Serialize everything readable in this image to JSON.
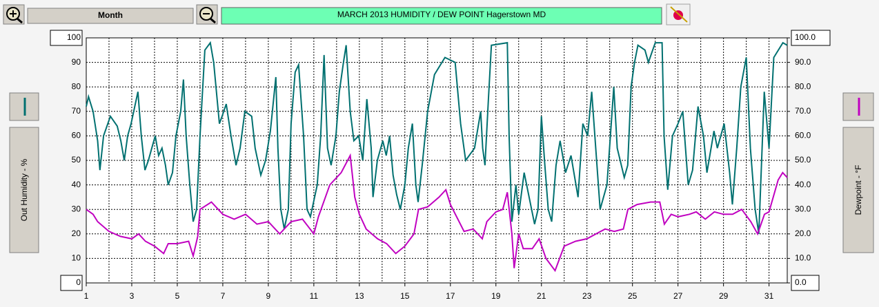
{
  "ui": {
    "period": "Month"
  },
  "chart_data": {
    "type": "line",
    "title": "MARCH  2013  HUMIDITY / DEW POINT  Hagerstown MD",
    "xlim": [
      1,
      31.8
    ],
    "xticks": [
      1,
      3,
      5,
      7,
      9,
      11,
      13,
      15,
      17,
      19,
      21,
      23,
      25,
      27,
      29,
      31
    ],
    "ylim": [
      0,
      100
    ],
    "yticks": [
      0,
      10,
      20,
      30,
      40,
      50,
      60,
      70,
      80,
      90,
      100
    ],
    "y2lim": [
      0,
      100
    ],
    "y2ticks": [
      {
        "value": 0,
        "label": "0.0"
      },
      {
        "value": 10,
        "label": "10.0"
      },
      {
        "value": 20,
        "label": "20.0"
      },
      {
        "value": 30,
        "label": "30.0"
      },
      {
        "value": 40,
        "label": "40.0"
      },
      {
        "value": 50,
        "label": "50.0"
      },
      {
        "value": 60,
        "label": "60.0"
      },
      {
        "value": 70,
        "label": "70.0"
      },
      {
        "value": 80,
        "label": "80.0"
      },
      {
        "value": 90,
        "label": "90.0"
      },
      {
        "value": 100,
        "label": "100.0"
      }
    ],
    "grid": true,
    "series": [
      {
        "name": "Out Humidity - %",
        "color": "#007070",
        "x": [
          1.0,
          1.1,
          1.3,
          1.5,
          1.6,
          1.76,
          2.06,
          2.36,
          2.52,
          2.67,
          2.82,
          2.97,
          3.27,
          3.42,
          3.58,
          3.73,
          3.88,
          4.03,
          4.18,
          4.33,
          4.48,
          4.6,
          4.79,
          4.94,
          5.15,
          5.27,
          5.39,
          5.55,
          5.7,
          5.85,
          6.0,
          6.21,
          6.45,
          6.6,
          6.85,
          6.97,
          7.15,
          7.36,
          7.58,
          7.76,
          7.97,
          8.27,
          8.42,
          8.67,
          8.88,
          9.09,
          9.33,
          9.42,
          9.55,
          9.7,
          9.88,
          10.0,
          10.18,
          10.33,
          10.55,
          10.7,
          10.85,
          11.15,
          11.3,
          11.45,
          11.6,
          11.76,
          11.97,
          12.12,
          12.3,
          12.42,
          12.6,
          12.76,
          12.97,
          13.15,
          13.33,
          13.52,
          13.6,
          13.79,
          14.03,
          14.18,
          14.33,
          14.48,
          14.64,
          14.8,
          15.0,
          15.15,
          15.33,
          15.48,
          15.58,
          15.76,
          16.0,
          16.3,
          16.76,
          17.21,
          17.45,
          17.67,
          18.06,
          18.33,
          18.42,
          18.52,
          18.67,
          18.8,
          19.5,
          19.58,
          19.7,
          19.88,
          20.0,
          20.24,
          20.7,
          20.85,
          21.0,
          21.15,
          21.3,
          21.45,
          21.64,
          21.82,
          22.06,
          22.3,
          22.61,
          22.82,
          23.03,
          23.21,
          23.58,
          23.88,
          24.03,
          24.18,
          24.33,
          24.64,
          24.79,
          24.94,
          25.09,
          25.24,
          25.55,
          25.7,
          26.0,
          26.3,
          26.39,
          26.55,
          26.76,
          27.0,
          27.21,
          27.45,
          27.64,
          27.88,
          28.12,
          28.27,
          28.58,
          28.73,
          29.03,
          29.27,
          29.39,
          29.58,
          29.76,
          30.0,
          30.18,
          30.39,
          30.55,
          30.79,
          31.0,
          31.21,
          31.61,
          31.8
        ],
        "values": [
          72,
          76,
          70,
          58,
          46,
          60,
          68,
          64,
          58,
          50,
          60,
          65,
          78,
          60,
          46,
          50,
          55,
          60,
          52,
          55,
          48,
          40,
          45,
          60,
          70,
          83,
          60,
          40,
          25,
          30,
          60,
          95,
          98,
          90,
          65,
          68,
          73,
          60,
          48,
          55,
          70,
          68,
          55,
          44,
          50,
          62,
          84,
          55,
          30,
          22,
          30,
          65,
          86,
          89,
          60,
          30,
          27,
          40,
          60,
          93,
          55,
          48,
          60,
          78,
          90,
          97,
          70,
          58,
          60,
          50,
          75,
          55,
          35,
          50,
          58,
          52,
          60,
          44,
          36,
          30,
          40,
          55,
          65,
          40,
          33,
          48,
          70,
          85,
          92,
          90,
          65,
          50,
          55,
          70,
          55,
          48,
          75,
          97,
          98,
          60,
          25,
          40,
          28,
          45,
          24,
          30,
          68,
          48,
          30,
          25,
          48,
          58,
          45,
          52,
          35,
          65,
          60,
          78,
          30,
          40,
          60,
          80,
          55,
          43,
          48,
          80,
          90,
          97,
          95,
          90,
          98,
          98,
          60,
          38,
          60,
          65,
          70,
          40,
          46,
          72,
          60,
          45,
          62,
          55,
          65,
          45,
          32,
          55,
          80,
          92,
          55,
          30,
          20,
          78,
          55,
          92,
          98,
          97
        ]
      },
      {
        "name": "Dewpoint - °F",
        "color": "#c000c0",
        "axis": "y2",
        "x": [
          1.0,
          1.3,
          1.5,
          2.0,
          2.5,
          3.0,
          3.3,
          3.6,
          4.0,
          4.4,
          4.6,
          5.0,
          5.5,
          5.7,
          5.9,
          6.0,
          6.5,
          6.8,
          7.0,
          7.5,
          8.0,
          8.5,
          9.0,
          9.5,
          10.0,
          10.5,
          11.0,
          11.2,
          11.7,
          12.2,
          12.6,
          12.8,
          13.0,
          13.3,
          13.8,
          14.2,
          14.6,
          15.0,
          15.4,
          15.6,
          16.0,
          16.5,
          16.8,
          17.0,
          17.6,
          18.0,
          18.4,
          18.6,
          19.0,
          19.3,
          19.5,
          19.7,
          19.8,
          20.0,
          20.2,
          20.6,
          20.9,
          21.2,
          21.6,
          22.0,
          22.5,
          23.0,
          23.4,
          23.8,
          24.2,
          24.6,
          24.8,
          25.2,
          25.8,
          26.2,
          26.4,
          26.7,
          27.0,
          27.5,
          27.8,
          28.2,
          28.6,
          29.0,
          29.4,
          29.8,
          30.2,
          30.5,
          30.8,
          31.0,
          31.4,
          31.6,
          31.8
        ],
        "values": [
          30,
          28,
          25,
          21,
          19,
          18,
          20,
          17,
          15,
          12,
          16,
          16,
          17,
          11,
          19,
          30,
          33,
          30,
          28,
          26,
          28,
          24,
          25,
          20,
          25,
          26,
          20,
          27,
          40,
          45,
          52,
          35,
          28,
          22,
          18,
          16,
          12,
          15,
          20,
          30,
          31,
          35,
          38,
          32,
          21,
          22,
          18,
          25,
          29,
          30,
          37,
          20,
          6,
          20,
          14,
          14,
          18,
          10,
          5,
          15,
          17,
          18,
          20,
          22,
          21,
          22,
          30,
          32,
          33,
          33,
          24,
          28,
          27,
          28,
          29,
          26,
          29,
          28,
          28,
          30,
          25,
          20,
          28,
          29,
          42,
          45,
          43
        ]
      }
    ]
  }
}
